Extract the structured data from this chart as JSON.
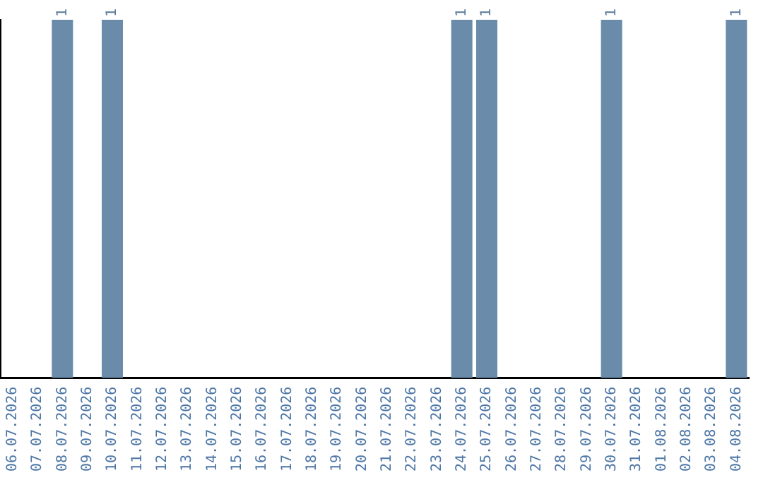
{
  "chart_data": {
    "type": "bar",
    "categories": [
      "06.07.2026",
      "07.07.2026",
      "08.07.2026",
      "09.07.2026",
      "10.07.2026",
      "11.07.2026",
      "12.07.2026",
      "13.07.2026",
      "14.07.2026",
      "15.07.2026",
      "16.07.2026",
      "17.07.2026",
      "18.07.2026",
      "19.07.2026",
      "20.07.2026",
      "21.07.2026",
      "22.07.2026",
      "23.07.2026",
      "24.07.2026",
      "25.07.2026",
      "26.07.2026",
      "27.07.2026",
      "28.07.2026",
      "29.07.2026",
      "30.07.2026",
      "31.07.2026",
      "01.08.2026",
      "02.08.2026",
      "03.08.2026",
      "04.08.2026"
    ],
    "values": [
      0,
      0,
      1,
      0,
      1,
      0,
      0,
      0,
      0,
      0,
      0,
      0,
      0,
      0,
      0,
      0,
      0,
      0,
      1,
      1,
      0,
      0,
      0,
      0,
      1,
      0,
      0,
      0,
      0,
      1
    ],
    "value_labels": [
      null,
      null,
      "1",
      null,
      "1",
      null,
      null,
      null,
      null,
      null,
      null,
      null,
      null,
      null,
      null,
      null,
      null,
      null,
      "1",
      "1",
      null,
      null,
      null,
      null,
      "1",
      null,
      null,
      null,
      null,
      "1"
    ],
    "color": "#6a8caa",
    "ylim": [
      0,
      1
    ],
    "tick_labels": "x",
    "grid": false,
    "legend": false
  }
}
